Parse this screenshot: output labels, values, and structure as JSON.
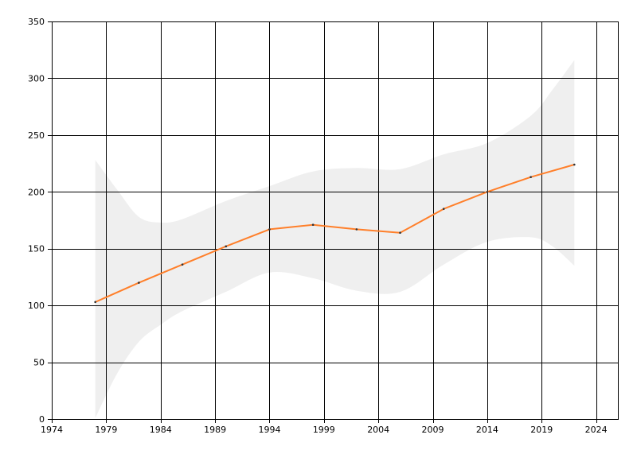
{
  "chart_data": {
    "type": "line",
    "title": "",
    "xlabel": "",
    "ylabel": "",
    "xlim": [
      1974,
      2026
    ],
    "ylim": [
      0,
      350
    ],
    "x_ticks": [
      1974,
      1979,
      1984,
      1989,
      1994,
      1999,
      2004,
      2009,
      2014,
      2019,
      2024
    ],
    "y_ticks": [
      0,
      50,
      100,
      150,
      200,
      250,
      300,
      350
    ],
    "x_tick_labels": [
      "1974",
      "1979",
      "1984",
      "1989",
      "1994",
      "1999",
      "2004",
      "2009",
      "2014",
      "2019",
      "2024"
    ],
    "y_tick_labels": [
      "0",
      "50",
      "100",
      "150",
      "200",
      "250",
      "300",
      "350"
    ],
    "grid": true,
    "legend": "none",
    "series": [
      {
        "color": "#ff7f2a",
        "x": [
          1978,
          1982,
          1986,
          1990,
          1994,
          1998,
          2002,
          2006,
          2010,
          2014,
          2018,
          2022
        ],
        "values": [
          103,
          120,
          136,
          152,
          167,
          171,
          167,
          164,
          185,
          200,
          213,
          224
        ]
      }
    ],
    "confidence_band": {
      "color": "#efefef",
      "x": [
        1978,
        1980,
        1982,
        1984,
        1986,
        1990,
        1994,
        1998,
        2002,
        2006,
        2010,
        2014,
        2018,
        2020,
        2022
      ],
      "upper": [
        228,
        202,
        178,
        173,
        176,
        192,
        205,
        218,
        221,
        220,
        233,
        243,
        267,
        290,
        316
      ],
      "lower": [
        1,
        40,
        68,
        83,
        95,
        112,
        129,
        124,
        113,
        112,
        136,
        156,
        160,
        152,
        135
      ]
    }
  }
}
